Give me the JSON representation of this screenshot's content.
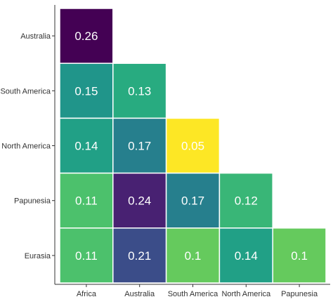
{
  "chart_data": {
    "type": "heatmap",
    "title": "",
    "xlabel": "",
    "ylabel": "",
    "x_categories": [
      "Africa",
      "Australia",
      "South America",
      "North America",
      "Papunesia"
    ],
    "y_categories": [
      "Australia",
      "South America",
      "North America",
      "Papunesia",
      "Eurasia"
    ],
    "grid": false,
    "legend": "none",
    "colormap": "viridis",
    "color_range": [
      0.05,
      0.26
    ],
    "cells": [
      {
        "x": "Africa",
        "y": "Australia",
        "value": 0.26,
        "label": "0.26"
      },
      {
        "x": "Africa",
        "y": "South America",
        "value": 0.15,
        "label": "0.15"
      },
      {
        "x": "Australia",
        "y": "South America",
        "value": 0.13,
        "label": "0.13"
      },
      {
        "x": "Africa",
        "y": "North America",
        "value": 0.14,
        "label": "0.14"
      },
      {
        "x": "Australia",
        "y": "North America",
        "value": 0.17,
        "label": "0.17"
      },
      {
        "x": "South America",
        "y": "North America",
        "value": 0.05,
        "label": "0.05"
      },
      {
        "x": "Africa",
        "y": "Papunesia",
        "value": 0.11,
        "label": "0.11"
      },
      {
        "x": "Australia",
        "y": "Papunesia",
        "value": 0.24,
        "label": "0.24"
      },
      {
        "x": "South America",
        "y": "Papunesia",
        "value": 0.17,
        "label": "0.17"
      },
      {
        "x": "North America",
        "y": "Papunesia",
        "value": 0.12,
        "label": "0.12"
      },
      {
        "x": "Africa",
        "y": "Eurasia",
        "value": 0.11,
        "label": "0.11"
      },
      {
        "x": "Australia",
        "y": "Eurasia",
        "value": 0.21,
        "label": "0.21"
      },
      {
        "x": "South America",
        "y": "Eurasia",
        "value": 0.1,
        "label": "0.1"
      },
      {
        "x": "North America",
        "y": "Eurasia",
        "value": 0.14,
        "label": "0.14"
      },
      {
        "x": "Papunesia",
        "y": "Eurasia",
        "value": 0.1,
        "label": "0.1"
      }
    ]
  }
}
